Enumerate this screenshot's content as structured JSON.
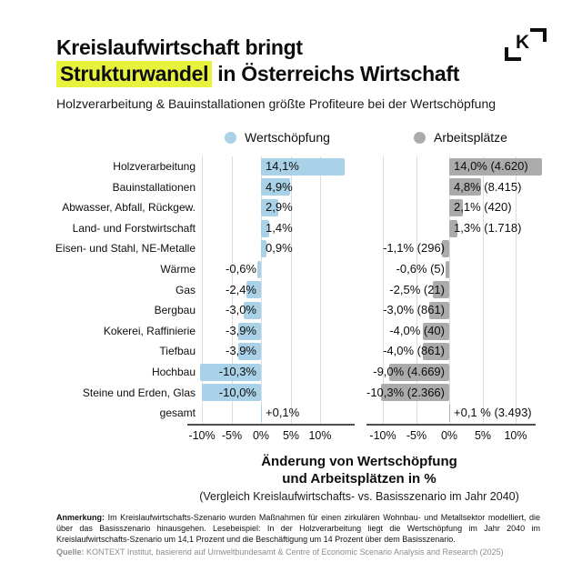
{
  "header": {
    "title_line1": "Kreislaufwirtschaft bringt",
    "title_highlight": "Strukturwandel",
    "title_line2_rest": " in Österreichs Wirtschaft",
    "subtitle": "Holzverarbeitung & Bauinstallationen größte Profiteure bei der Wertschöpfung",
    "logo_letter": "K"
  },
  "legend": [
    {
      "label": "Wertschöpfung",
      "color": "#a9d2e8"
    },
    {
      "label": "Arbeitsplätze",
      "color": "#ababab"
    }
  ],
  "chart_data": {
    "type": "bar",
    "orientation": "horizontal",
    "categories": [
      "Holzverarbeitung",
      "Bauinstallationen",
      "Abwasser, Abfall, Rückgew.",
      "Land- und Forstwirtschaft",
      "Eisen- und Stahl, NE-Metalle",
      "Wärme",
      "Gas",
      "Bergbau",
      "Kokerei, Raffinierie",
      "Tiefbau",
      "Hochbau",
      "Steine und Erden, Glas",
      "gesamt"
    ],
    "series": [
      {
        "name": "Wertschöpfung",
        "color": "#a9d2e8",
        "values": [
          14.1,
          4.9,
          2.9,
          1.4,
          0.9,
          -0.6,
          -2.4,
          -3.0,
          -3.9,
          -3.9,
          -10.3,
          -10.0,
          0.1
        ],
        "value_labels": [
          "14,1%",
          "4,9%",
          "2,9%",
          "1,4%",
          "0,9%",
          "-0,6%",
          "-2,4%",
          "-3,0%",
          "-3,9%",
          "-3,9%",
          "-10,3%",
          "-10,0%",
          "+0,1%"
        ]
      },
      {
        "name": "Arbeitsplätze",
        "color": "#ababab",
        "values": [
          14.0,
          4.8,
          2.1,
          1.3,
          -1.1,
          -0.6,
          -2.5,
          -3.0,
          -4.0,
          -4.0,
          -9.0,
          -10.3,
          0.1
        ],
        "value_labels": [
          "14,0% (4.620)",
          "4,8% (8.415)",
          "2,1% (420)",
          "1,3% (1.718)",
          "-1,1% (296)",
          "-0,6% (5)",
          "-2,5% (21)",
          "-3,0% (861)",
          "-4,0% (40)",
          "-4,0% (861)",
          "-9,0% (4.669)",
          "-10,3% (2.366)",
          "+0,1 % (3.493)"
        ]
      }
    ],
    "x_ticks": [
      "-10%",
      "-5%",
      "0%",
      "5%",
      "10%"
    ],
    "x_tick_values": [
      -10,
      -5,
      0,
      5,
      10
    ],
    "xlim": [
      -12,
      15
    ],
    "grid": true,
    "legend_position": "top",
    "axis_title_line1": "Änderung von Wertschöpfung",
    "axis_title_line2": "und Arbeitsplätzen in %",
    "axis_subtitle": "(Vergleich Kreislaufwirtschafts- vs. Basisszenario im Jahr 2040)"
  },
  "footnote": {
    "note_label": "Anmerkung:",
    "note_text": "Im Kreislaufwirtschafts-Szenario wurden Maßnahmen für einen zirkulären Wohnbau- und Metallsektor modelliert, die über das Basisszenario hinausgehen. Lesebeispiel: In der Holzverarbeitung liegt die Wertschöpfung im Jahr 2040 im Kreislaufwirtschafts-Szenario um 14,1 Prozent und die Beschäftigung um 14 Prozent über dem Basisszenario.",
    "source_label": "Quelle:",
    "source_text": "KONTEXT Institut, basierend auf Umweltbundesamt & Centre of Economic Scenario Analysis and Research (2025)"
  },
  "colors": {
    "highlight": "#e6f23c",
    "bar_blue": "#a9d2e8",
    "bar_gray": "#ababab",
    "grid_line": "#dcdcdc",
    "axis_line": "#4d4d4d",
    "source_text": "#8c8c8c"
  }
}
